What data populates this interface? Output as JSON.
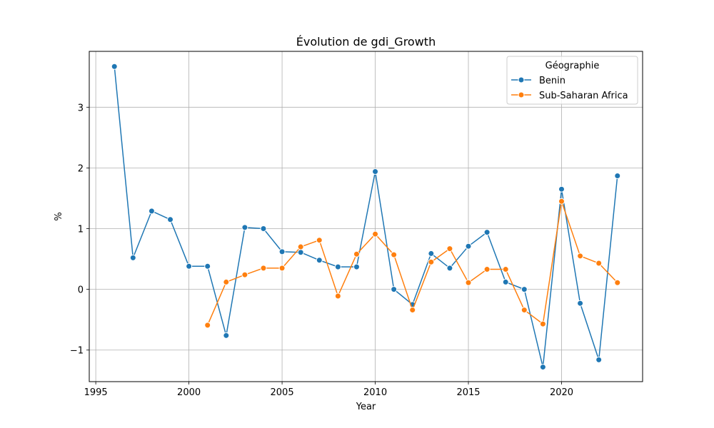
{
  "chart_data": {
    "type": "line",
    "title": "Évolution de gdi_Growth",
    "xlabel": "Year",
    "ylabel": "%",
    "xlim": [
      1994.65,
      2024.35
    ],
    "ylim": [
      -1.52,
      3.92
    ],
    "xticks": [
      1995,
      2000,
      2005,
      2010,
      2015,
      2020
    ],
    "yticks": [
      -1,
      0,
      1,
      2,
      3
    ],
    "ytick_labels": [
      "−1",
      "0",
      "1",
      "2",
      "3"
    ],
    "grid": true,
    "legend": {
      "title": "Géographie",
      "placement": "top-right"
    },
    "series": [
      {
        "name": "Benin",
        "color": "#1f77b4",
        "x": [
          1996,
          1997,
          1998,
          1999,
          2000,
          2001,
          2002,
          2003,
          2004,
          2005,
          2006,
          2007,
          2008,
          2009,
          2010,
          2011,
          2012,
          2013,
          2014,
          2015,
          2016,
          2017,
          2018,
          2019,
          2020,
          2021,
          2022,
          2023
        ],
        "y": [
          3.67,
          0.52,
          1.29,
          1.15,
          0.38,
          0.38,
          -0.76,
          1.02,
          1.0,
          0.62,
          0.61,
          0.48,
          0.37,
          0.37,
          1.94,
          0.0,
          -0.25,
          0.59,
          0.35,
          0.71,
          0.94,
          0.12,
          0.0,
          -1.28,
          1.65,
          -0.23,
          -1.16,
          1.87
        ]
      },
      {
        "name": "Sub-Saharan Africa",
        "color": "#ff7f0e",
        "x": [
          2001,
          2002,
          2003,
          2004,
          2005,
          2006,
          2007,
          2008,
          2009,
          2010,
          2011,
          2012,
          2013,
          2014,
          2015,
          2016,
          2017,
          2018,
          2019,
          2020,
          2021,
          2022,
          2023
        ],
        "y": [
          -0.59,
          0.12,
          0.24,
          0.35,
          0.35,
          0.7,
          0.81,
          -0.11,
          0.58,
          0.91,
          0.57,
          -0.34,
          0.45,
          0.67,
          0.11,
          0.33,
          0.33,
          -0.34,
          -0.57,
          1.45,
          0.55,
          0.43,
          0.11
        ]
      }
    ]
  }
}
